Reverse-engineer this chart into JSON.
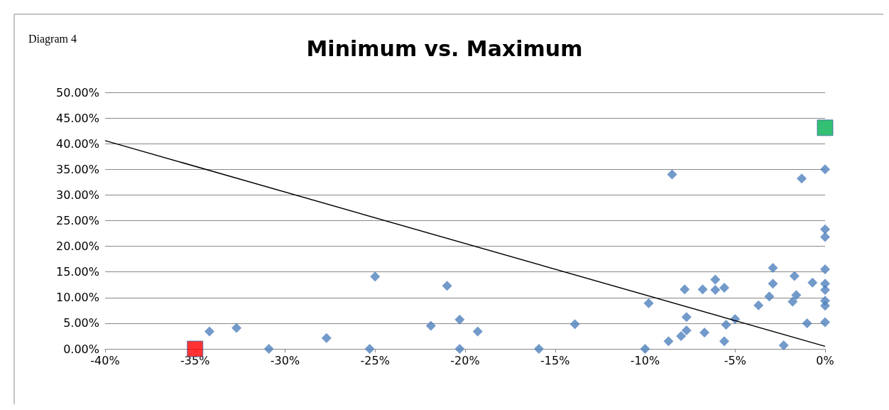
{
  "chart_data": {
    "type": "scatter",
    "title": "Minimum vs. Maximum",
    "annotations": [
      "Diagram 4"
    ],
    "xlim": [
      -40,
      0
    ],
    "ylim": [
      0,
      50
    ],
    "xticks": [
      {
        "value": -40,
        "label": "-40%"
      },
      {
        "value": -35,
        "label": "-35%"
      },
      {
        "value": -30,
        "label": "-30%"
      },
      {
        "value": -25,
        "label": "-25%"
      },
      {
        "value": -20,
        "label": "-20%"
      },
      {
        "value": -15,
        "label": "-15%"
      },
      {
        "value": -10,
        "label": "-10%"
      },
      {
        "value": -5,
        "label": "-5%"
      },
      {
        "value": 0,
        "label": "0%"
      }
    ],
    "yticks": [
      {
        "value": 0,
        "label": "0.00%"
      },
      {
        "value": 5,
        "label": "5.00%"
      },
      {
        "value": 10,
        "label": "10.00%"
      },
      {
        "value": 15,
        "label": "15.00%"
      },
      {
        "value": 20,
        "label": "20.00%"
      },
      {
        "value": 25,
        "label": "25.00%"
      },
      {
        "value": 30,
        "label": "30.00%"
      },
      {
        "value": 35,
        "label": "35.00%"
      },
      {
        "value": 40,
        "label": "40.00%"
      },
      {
        "value": 45,
        "label": "45.00%"
      },
      {
        "value": 50,
        "label": "50.00%"
      }
    ],
    "grid": "y",
    "marker": "diamond",
    "series": [
      {
        "color": "#4f81bd",
        "x": [
          -34.2,
          -32.7,
          -30.9,
          -27.7,
          -25.3,
          -25.0,
          -21.9,
          -21.0,
          -20.3,
          -20.3,
          -19.3,
          -15.9,
          -13.9,
          -8.5,
          -1.3,
          0,
          0,
          0,
          0,
          0,
          0,
          0,
          0,
          0,
          -9.8,
          -10.0,
          -8.7,
          -8.0,
          -7.7,
          -7.7,
          -7.8,
          -6.7,
          -6.8,
          -6.1,
          -6.1,
          -5.6,
          -5.6,
          -5.5,
          -5.0,
          -3.7,
          -3.1,
          -2.9,
          -2.9,
          -2.3,
          -1.7,
          -1.6,
          -1.8,
          -1.0,
          -0.7
        ],
        "values": [
          3.4,
          4.1,
          0,
          2.1,
          0,
          14.1,
          4.5,
          12.3,
          5.7,
          0,
          3.4,
          0,
          4.8,
          34.0,
          33.2,
          35.0,
          23.3,
          21.8,
          15.5,
          12.7,
          11.5,
          9.4,
          8.4,
          5.2,
          8.9,
          0,
          1.5,
          2.5,
          3.6,
          6.2,
          11.6,
          3.2,
          11.6,
          13.5,
          11.5,
          11.9,
          1.5,
          4.7,
          5.8,
          8.5,
          10.2,
          12.7,
          15.8,
          0.7,
          14.2,
          10.5,
          9.2,
          5.0,
          12.9
        ]
      },
      {
        "color": "#ff0000",
        "marker": "square",
        "x": [
          -35
        ],
        "values": [
          0
        ]
      },
      {
        "color": "#00b050",
        "marker": "square",
        "x": [
          0
        ],
        "values": [
          43.1
        ]
      },
      {
        "type": "line",
        "color": "#000000",
        "marker": "none",
        "x": [
          -40,
          0
        ],
        "values": [
          40.6,
          0.5
        ]
      }
    ]
  }
}
